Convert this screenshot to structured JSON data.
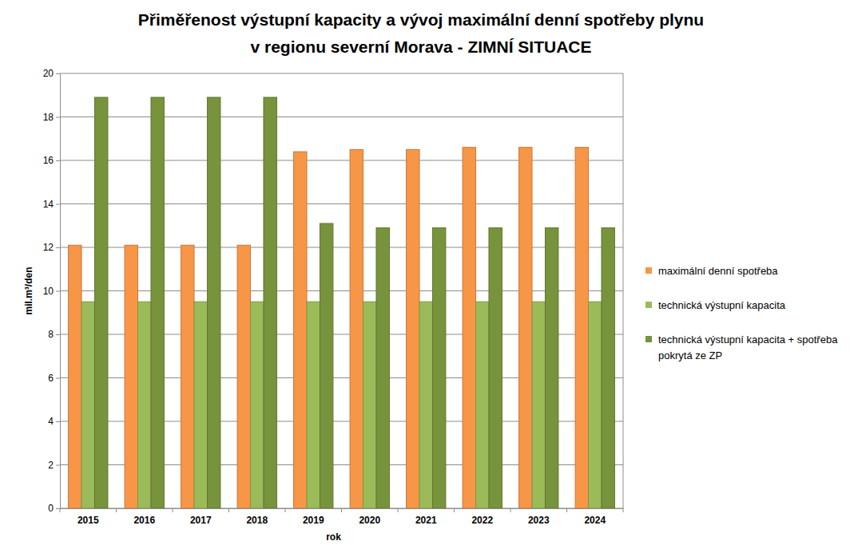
{
  "chart_data": {
    "type": "bar",
    "title": [
      "Přiměřenost výstupní kapacity a vývoj maximální denní spotřeby plynu",
      "v regionu severní Morava - ZIMNÍ SITUACE"
    ],
    "x_label": "rok",
    "y_label": "mil.m³/den",
    "categories": [
      "2015",
      "2016",
      "2017",
      "2018",
      "2019",
      "2020",
      "2021",
      "2022",
      "2023",
      "2024"
    ],
    "series": [
      {
        "name": "maximální denní spotřeba",
        "color": "#f79646",
        "values": [
          12.1,
          12.1,
          12.1,
          12.1,
          16.4,
          16.5,
          16.5,
          16.6,
          16.6,
          16.6
        ]
      },
      {
        "name": "technická výstupní kapacita",
        "color": "#9bbb59",
        "values": [
          9.5,
          9.5,
          9.5,
          9.5,
          9.5,
          9.5,
          9.5,
          9.5,
          9.5,
          9.5
        ]
      },
      {
        "name": "technická výstupní kapacita + spotřeba pokrytá ze ZP",
        "color": "#77933c",
        "values": [
          18.9,
          18.9,
          18.9,
          18.9,
          13.1,
          12.9,
          12.9,
          12.9,
          12.9,
          12.9
        ]
      }
    ],
    "ylim": [
      0,
      20
    ],
    "yticks": [
      0,
      2,
      4,
      6,
      8,
      10,
      12,
      14,
      16,
      18,
      20
    ],
    "grid": true,
    "legend": "right"
  }
}
